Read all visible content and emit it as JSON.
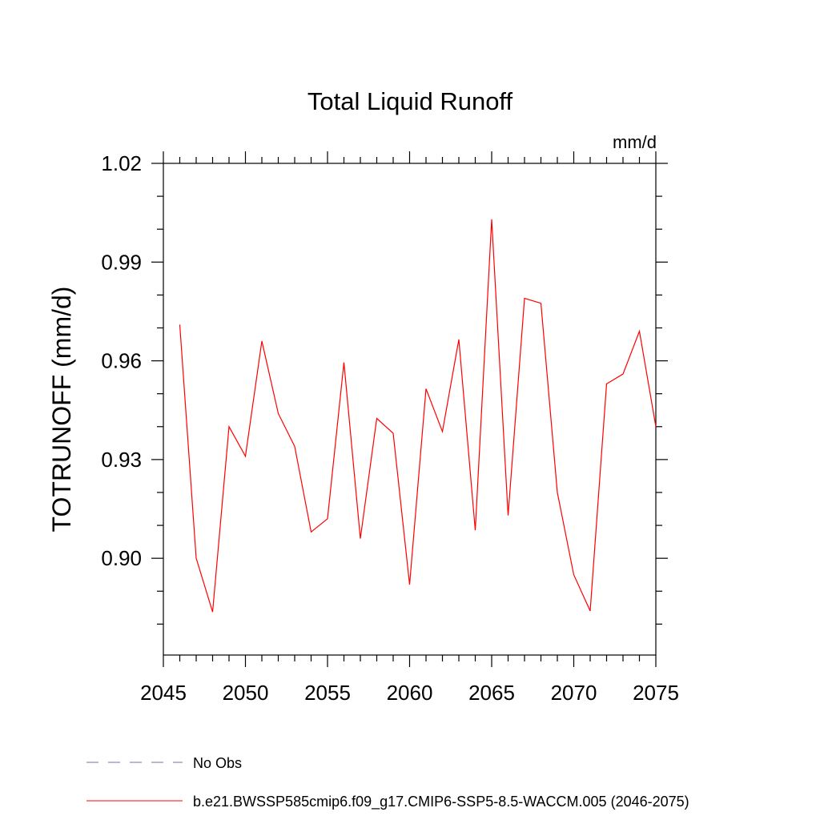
{
  "chart_data": {
    "type": "line",
    "title": "Total Liquid Runoff",
    "units": "mm/d",
    "xlabel": "",
    "ylabel": "TOTRUNOFF  (mm/d)",
    "xlim": [
      2045,
      2075
    ],
    "ylim": [
      0.8706,
      1.02
    ],
    "x_ticks": [
      2045,
      2050,
      2055,
      2060,
      2065,
      2070,
      2075
    ],
    "x_tick_labels": [
      "2045",
      "2050",
      "2055",
      "2060",
      "2065",
      "2070",
      "2075"
    ],
    "y_ticks": [
      0.9,
      0.93,
      0.96,
      0.99,
      1.02
    ],
    "y_tick_labels": [
      "0.90",
      "0.93",
      "0.96",
      "0.99",
      "1.02"
    ],
    "y_minor_step": 0.01,
    "series": [
      {
        "name": "b.e21.BWSSP585cmip6.f09_g17.CMIP6-SSP5-8.5-WACCM.005 (2046-2075)",
        "color": "#ff0000",
        "style": "solid",
        "x": [
          2046,
          2047,
          2048,
          2049,
          2050,
          2051,
          2052,
          2053,
          2054,
          2055,
          2056,
          2057,
          2058,
          2059,
          2060,
          2061,
          2062,
          2063,
          2064,
          2065,
          2066,
          2067,
          2068,
          2069,
          2070,
          2071,
          2072,
          2073,
          2074,
          2075
        ],
        "y": [
          0.971,
          0.9,
          0.8837,
          0.94,
          0.931,
          0.966,
          0.944,
          0.934,
          0.908,
          0.912,
          0.9595,
          0.906,
          0.9425,
          0.938,
          0.892,
          0.9515,
          0.9385,
          0.9665,
          0.9085,
          1.003,
          0.913,
          0.979,
          0.9775,
          0.92,
          0.895,
          0.884,
          0.953,
          0.956,
          0.969,
          0.94
        ]
      }
    ],
    "legend": {
      "placement": "bottom-left",
      "entries": [
        {
          "label": "No Obs",
          "color": "#7b6fa6",
          "style": "dashed"
        },
        {
          "label": "b.e21.BWSSP585cmip6.f09_g17.CMIP6-SSP5-8.5-WACCM.005 (2046-2075)",
          "color": "#ff0000",
          "style": "solid"
        }
      ]
    },
    "grid": false
  }
}
